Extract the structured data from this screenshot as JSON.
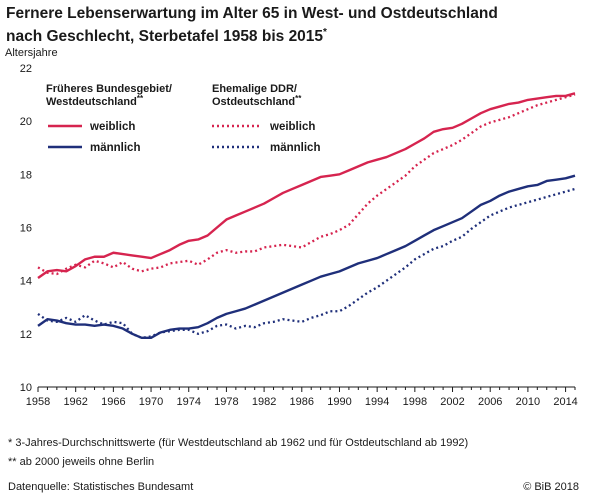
{
  "title_line1": "Fernere Lebenserwartung im Alter 65 in West- und Ostdeutschland",
  "title_line2": "nach Geschlecht, Sterbetafel 1958 bis 2015",
  "title_mark": "*",
  "legend": {
    "group_west_line1": "Früheres Bundesgebiet/",
    "group_west_line2": "Westdeutschland",
    "group_west_mark": "**",
    "group_east_line1": "Ehemalige DDR/",
    "group_east_line2": "Ostdeutschland",
    "group_east_mark": "**",
    "female": "weiblich",
    "male": "männlich",
    "position": "top-left"
  },
  "footnotes": {
    "note1": "* 3-Jahres-Durchschnittswerte (für Westdeutschland ab 1962 und für Ostdeutschland ab 1992)",
    "note2": "** ab 2000 jeweils ohne Berlin"
  },
  "source": "Datenquelle: Statistisches Bundesamt",
  "copyright": "© BiB 2018",
  "colors": {
    "female": "#d6244f",
    "male": "#1f2f7a",
    "axis": "#1a1a1a"
  },
  "chart_data": {
    "type": "line",
    "ylabel": "Altersjahre",
    "xlim": [
      1958,
      2015
    ],
    "ylim": [
      10,
      22
    ],
    "yticks": [
      10,
      12,
      14,
      16,
      18,
      20,
      22
    ],
    "xticks": [
      1958,
      1962,
      1966,
      1970,
      1974,
      1978,
      1982,
      1986,
      1990,
      1994,
      1998,
      2002,
      2006,
      2010,
      2014
    ],
    "grid": false,
    "x": [
      1958,
      1959,
      1960,
      1961,
      1962,
      1963,
      1964,
      1965,
      1966,
      1967,
      1968,
      1969,
      1970,
      1971,
      1972,
      1973,
      1974,
      1975,
      1976,
      1977,
      1978,
      1979,
      1980,
      1981,
      1982,
      1983,
      1984,
      1985,
      1986,
      1987,
      1988,
      1989,
      1990,
      1991,
      1992,
      1993,
      1994,
      1995,
      1996,
      1997,
      1998,
      1999,
      2000,
      2001,
      2002,
      2003,
      2004,
      2005,
      2006,
      2007,
      2008,
      2009,
      2010,
      2011,
      2012,
      2013,
      2014,
      2015
    ],
    "series": [
      {
        "group": "west",
        "sex": "female",
        "style": "solid",
        "values": [
          14.1,
          14.35,
          14.4,
          14.35,
          14.55,
          14.8,
          14.9,
          14.9,
          15.05,
          15.0,
          14.95,
          14.9,
          14.85,
          15.0,
          15.15,
          15.35,
          15.5,
          15.55,
          15.7,
          16.0,
          16.3,
          16.45,
          16.6,
          16.75,
          16.9,
          17.1,
          17.3,
          17.45,
          17.6,
          17.75,
          17.9,
          17.95,
          18.0,
          18.15,
          18.3,
          18.45,
          18.55,
          18.65,
          18.8,
          18.95,
          19.15,
          19.35,
          19.6,
          19.7,
          19.75,
          19.9,
          20.1,
          20.3,
          20.45,
          20.55,
          20.65,
          20.7,
          20.8,
          20.85,
          20.9,
          20.95,
          20.95,
          21.05
        ]
      },
      {
        "group": "west",
        "sex": "male",
        "style": "solid",
        "values": [
          12.3,
          12.55,
          12.5,
          12.4,
          12.35,
          12.35,
          12.3,
          12.35,
          12.3,
          12.2,
          12.0,
          11.85,
          11.85,
          12.05,
          12.15,
          12.2,
          12.2,
          12.25,
          12.4,
          12.6,
          12.75,
          12.85,
          12.95,
          13.1,
          13.25,
          13.4,
          13.55,
          13.7,
          13.85,
          14.0,
          14.15,
          14.25,
          14.35,
          14.5,
          14.65,
          14.75,
          14.85,
          15.0,
          15.15,
          15.3,
          15.5,
          15.7,
          15.9,
          16.05,
          16.2,
          16.35,
          16.6,
          16.85,
          17.0,
          17.2,
          17.35,
          17.45,
          17.55,
          17.6,
          17.75,
          17.8,
          17.85,
          17.95
        ]
      },
      {
        "group": "east",
        "sex": "female",
        "style": "dotted",
        "values": [
          14.5,
          14.3,
          14.25,
          14.45,
          14.6,
          14.5,
          14.75,
          14.65,
          14.5,
          14.7,
          14.45,
          14.35,
          14.45,
          14.5,
          14.65,
          14.7,
          14.75,
          14.6,
          14.8,
          15.05,
          15.15,
          15.05,
          15.1,
          15.1,
          15.25,
          15.3,
          15.35,
          15.3,
          15.25,
          15.45,
          15.65,
          15.75,
          15.9,
          16.1,
          16.5,
          16.9,
          17.2,
          17.45,
          17.7,
          17.95,
          18.3,
          18.55,
          18.8,
          18.95,
          19.1,
          19.3,
          19.55,
          19.8,
          19.95,
          20.05,
          20.15,
          20.3,
          20.45,
          20.6,
          20.7,
          20.8,
          20.9,
          21.0
        ]
      },
      {
        "group": "east",
        "sex": "male",
        "style": "dotted",
        "values": [
          12.75,
          12.5,
          12.45,
          12.6,
          12.45,
          12.7,
          12.5,
          12.35,
          12.45,
          12.4,
          12.0,
          11.85,
          11.9,
          12.05,
          12.1,
          12.15,
          12.15,
          12.0,
          12.1,
          12.3,
          12.35,
          12.2,
          12.3,
          12.25,
          12.4,
          12.45,
          12.55,
          12.5,
          12.45,
          12.6,
          12.7,
          12.85,
          12.85,
          13.05,
          13.3,
          13.55,
          13.75,
          14.0,
          14.25,
          14.5,
          14.8,
          15.0,
          15.2,
          15.3,
          15.5,
          15.65,
          15.95,
          16.2,
          16.45,
          16.6,
          16.75,
          16.85,
          16.95,
          17.05,
          17.15,
          17.25,
          17.35,
          17.45
        ]
      }
    ]
  }
}
